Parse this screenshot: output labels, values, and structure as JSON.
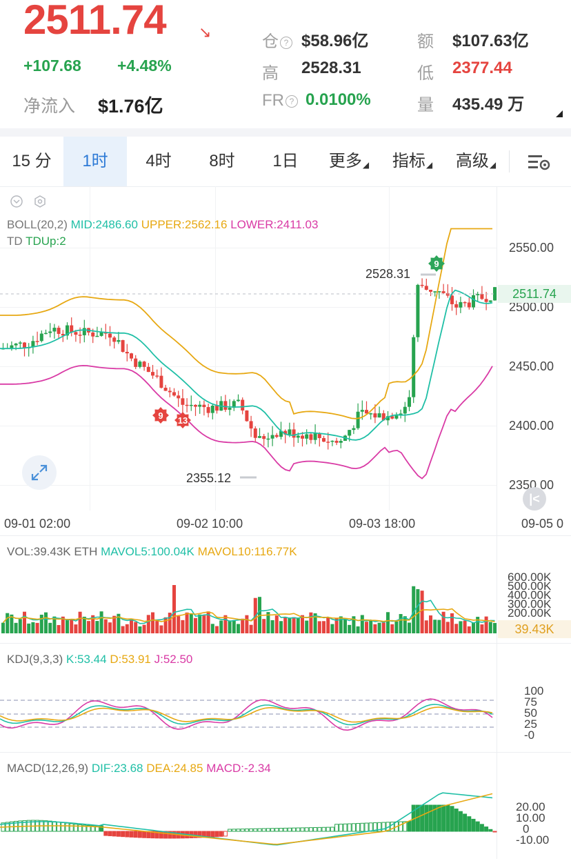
{
  "ticker": {
    "price": "2511.74",
    "change": "+107.68",
    "change_pct": "+4.48%",
    "net_flow_label": "净流入",
    "net_flow_value": "$1.76亿",
    "stats": [
      {
        "label": "仓",
        "value": "$58.96亿",
        "help": true
      },
      {
        "label": "额",
        "value": "$107.63亿"
      },
      {
        "label": "高",
        "value": "2528.31"
      },
      {
        "label": "低",
        "value": "2377.44"
      },
      {
        "label": "FR",
        "value": "0.0100%",
        "help": true
      },
      {
        "label": "量",
        "value": "435.49 万"
      }
    ],
    "colors": {
      "up": "#27a34f",
      "down": "#e5443f",
      "accent": "#2d7ad6"
    }
  },
  "tabs": [
    {
      "label": "15 分"
    },
    {
      "label": "1时",
      "active": true
    },
    {
      "label": "4时"
    },
    {
      "label": "8时"
    },
    {
      "label": "1日"
    },
    {
      "label": "更多",
      "dropdown": true
    },
    {
      "label": "指标",
      "dropdown": true
    },
    {
      "label": "高级",
      "dropdown": true
    }
  ],
  "tab_settings_icon": "chart-settings-icon",
  "main_chart": {
    "boll": {
      "name": "BOLL(20,2)",
      "mid": "MID:2486.60",
      "upper": "UPPER:2562.16",
      "lower": "LOWER:2411.03"
    },
    "td": {
      "name": "TD",
      "value": "TDUp:2"
    },
    "y_ticks": [
      "2550.00",
      "2500.00",
      "2450.00",
      "2400.00",
      "2350.00"
    ],
    "current_price_tag": "2511.74",
    "high_marker": "2528.31",
    "low_marker": "2355.12",
    "td_badges": [
      "9",
      "9",
      "13"
    ],
    "x_ticks": [
      "09-01 02:00",
      "09-02 10:00",
      "09-03 18:00",
      "09-05 0"
    ]
  },
  "vol_panel": {
    "vol": "VOL:39.43K ETH",
    "mavol5": "MAVOL5:100.04K",
    "mavol10": "MAVOL10:116.77K",
    "y_ticks": [
      "600.00K",
      "500.00K",
      "400.00K",
      "300.00K",
      "200.00K"
    ],
    "current_tag": "39.43K"
  },
  "kdj_panel": {
    "name": "KDJ(9,3,3)",
    "k": "K:53.44",
    "d": "D:53.91",
    "j": "J:52.50",
    "y_ticks": [
      "100",
      "75",
      "50",
      "25",
      "-0"
    ]
  },
  "macd_panel": {
    "name": "MACD(12,26,9)",
    "dif": "DIF:23.68",
    "dea": "DEA:24.85",
    "macd": "MACD:-2.34",
    "y_ticks": [
      "20.00",
      "10.00",
      "0",
      "-10.00"
    ]
  },
  "chart_data": {
    "type": "candlestick",
    "interval": "1h",
    "symbol": "ETH",
    "price_ylim": [
      2340,
      2575
    ],
    "price_high": 2528.31,
    "price_low": 2355.12,
    "last_price": 2511.74,
    "kdj_ylim": [
      -10,
      110
    ],
    "macd_ylim": [
      -14,
      28
    ]
  }
}
